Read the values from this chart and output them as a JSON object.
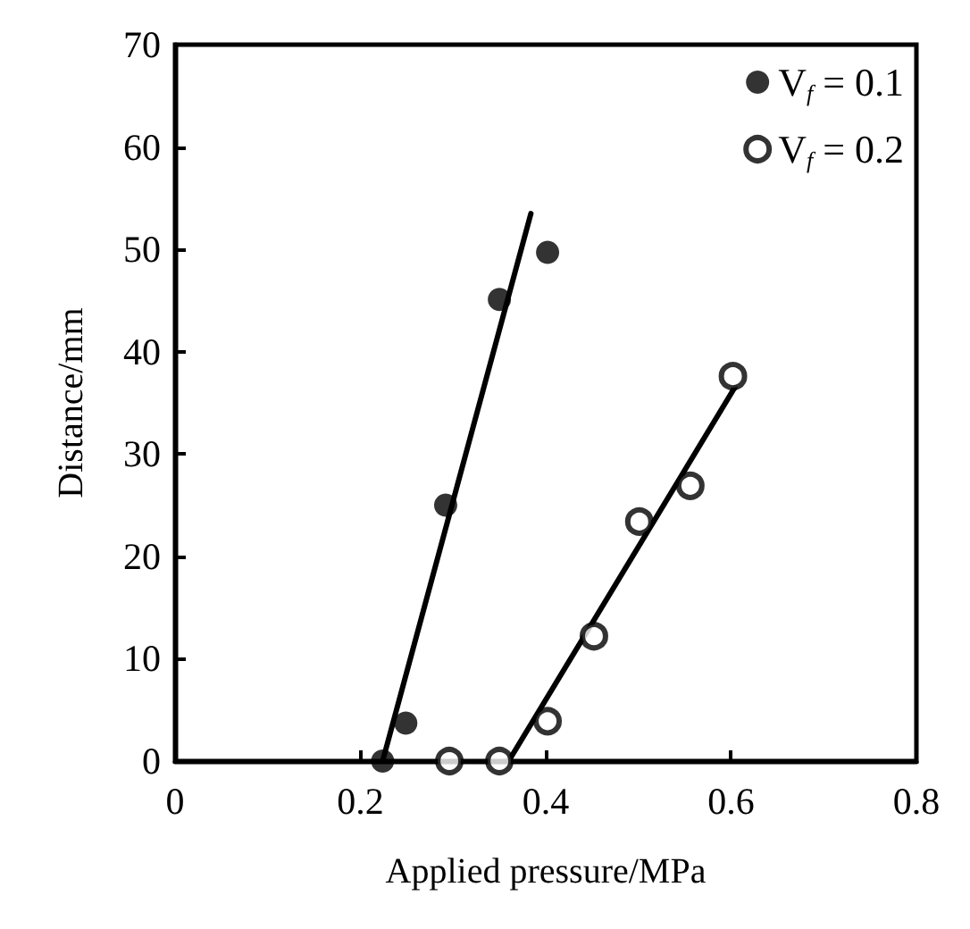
{
  "chart_data": {
    "type": "scatter",
    "xlabel": "Applied pressure/MPa",
    "ylabel": "Distance/mm",
    "xlim": [
      0,
      0.8
    ],
    "xticks": [
      0,
      0.2,
      0.4,
      0.6,
      0.8
    ],
    "ylim": [
      0,
      70
    ],
    "yticks": [
      0,
      10,
      20,
      30,
      40,
      50,
      60,
      70
    ],
    "grid": false,
    "legend": "top right",
    "series": [
      {
        "name": "V$_{f}$ = 0.1",
        "color": "#000000",
        "marker": "circle",
        "x": [
          0.224,
          0.249,
          0.292,
          0.35,
          0.402
        ],
        "values": [
          0,
          3.7,
          25,
          45.1,
          49.7
        ]
      },
      {
        "name": "V$_{f}$ = 0.2",
        "color": "#000000",
        "marker": "circle",
        "x": [
          0.296,
          0.35,
          0.402,
          0.452,
          0.501,
          0.556,
          0.602
        ],
        "values": [
          0,
          0,
          3.9,
          12.2,
          23.4,
          26.9,
          37.6
        ]
      },
      {
        "type": "line",
        "color": "#000000",
        "marker": "none",
        "line_style": "solid",
        "x": [
          0.224,
          0.384
        ],
        "values": [
          0,
          53.5
        ]
      },
      {
        "type": "line",
        "color": "#000000",
        "marker": "none",
        "line_style": "solid",
        "x": [
          0.36,
          0.604
        ],
        "values": [
          0,
          36.5
        ]
      }
    ]
  }
}
